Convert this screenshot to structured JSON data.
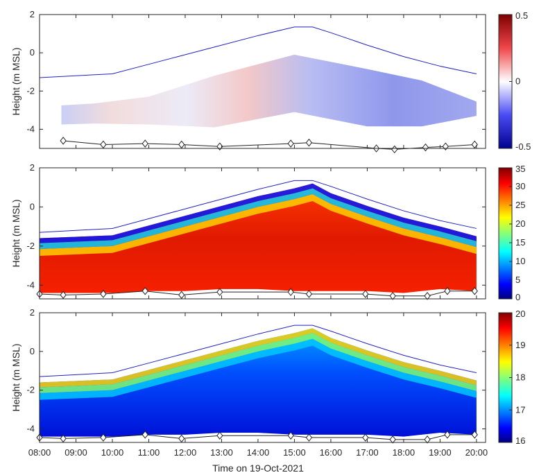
{
  "chart_data": [
    {
      "type": "heatmap",
      "ylabel": "Height (m MSL)",
      "ylim": [
        -5,
        2
      ],
      "xlim": [
        8.0,
        20.25
      ],
      "yticks": [
        -4,
        -2,
        0,
        2
      ],
      "colorbar": {
        "ticks": [
          -0.5,
          0,
          0.5
        ],
        "tick_labels": [
          "-0.5",
          "0",
          "0.5"
        ],
        "range": [
          -0.5,
          0.5
        ],
        "colormap": "blue-white-red"
      },
      "surface_line": {
        "x": [
          8.0,
          10.0,
          11.0,
          12.0,
          13.0,
          14.0,
          15.0,
          15.5,
          16.0,
          17.0,
          18.0,
          19.0,
          20.0
        ],
        "y": [
          -1.3,
          -1.1,
          -0.6,
          -0.1,
          0.4,
          0.9,
          1.35,
          1.35,
          1.05,
          0.4,
          -0.2,
          -0.7,
          -1.1
        ]
      },
      "bed_markers": {
        "x": [
          8.65,
          9.75,
          10.9,
          11.9,
          12.95,
          14.9,
          15.4,
          17.25,
          17.75,
          18.6,
          19.15,
          19.95
        ],
        "y": [
          -4.6,
          -4.8,
          -4.75,
          -4.8,
          -4.9,
          -4.75,
          -4.7,
          -5.0,
          -5.05,
          -4.95,
          -4.9,
          -4.8
        ]
      },
      "data_region": {
        "x": [
          8.6,
          9.5,
          11.0,
          12.8,
          15.0,
          17.0,
          18.5,
          20.0
        ],
        "top": [
          -2.75,
          -2.65,
          -2.3,
          -1.2,
          -0.1,
          -0.85,
          -1.45,
          -2.55
        ],
        "bottom": [
          -3.75,
          -3.7,
          -3.75,
          -3.9,
          -3.1,
          -3.85,
          -3.85,
          -3.3
        ]
      }
    },
    {
      "type": "heatmap",
      "ylabel": "Height (m MSL)",
      "ylim": [
        -4.7,
        2
      ],
      "xlim": [
        8.0,
        20.25
      ],
      "yticks": [
        -4,
        -2,
        0,
        2
      ],
      "colorbar": {
        "ticks": [
          0,
          5,
          10,
          15,
          20,
          25,
          30,
          35
        ],
        "tick_labels": [
          "0",
          "5",
          "10",
          "15",
          "20",
          "25",
          "30",
          "35"
        ],
        "range": [
          0,
          35
        ],
        "colormap": "jet"
      },
      "surface_line": {
        "x": [
          8.0,
          10.0,
          11.0,
          12.0,
          13.0,
          14.0,
          15.0,
          15.5,
          16.0,
          17.0,
          18.0,
          19.0,
          20.0
        ],
        "y": [
          -1.3,
          -1.1,
          -0.6,
          -0.1,
          0.4,
          0.9,
          1.35,
          1.35,
          1.05,
          0.4,
          -0.2,
          -0.7,
          -1.1
        ]
      },
      "bed_markers": {
        "x": [
          8.0,
          8.65,
          9.75,
          10.9,
          11.9,
          12.95,
          14.9,
          15.4,
          16.95,
          17.7,
          18.65,
          19.2,
          19.95
        ],
        "y": [
          -4.45,
          -4.5,
          -4.45,
          -4.3,
          -4.5,
          -4.35,
          -4.35,
          -4.45,
          -4.45,
          -4.55,
          -4.55,
          -4.3,
          -4.3
        ]
      },
      "data_region": {
        "x": [
          8.0,
          10.0,
          11.0,
          12.0,
          13.0,
          14.0,
          15.0,
          15.5,
          16.0,
          17.0,
          18.0,
          19.0,
          20.0
        ],
        "top": [
          -1.6,
          -1.45,
          -0.95,
          -0.45,
          0.05,
          0.55,
          0.95,
          1.2,
          0.7,
          0.05,
          -0.55,
          -1.0,
          -1.5
        ],
        "bottom": [
          -4.4,
          -4.4,
          -4.3,
          -4.3,
          -4.2,
          -4.2,
          -4.3,
          -4.3,
          -4.3,
          -4.3,
          -4.4,
          -4.2,
          -4.3
        ]
      }
    },
    {
      "type": "heatmap",
      "ylabel": "Height (m MSL)",
      "xlabel": "Time on 19-Oct-2021",
      "ylim": [
        -4.7,
        2
      ],
      "xlim": [
        8.0,
        20.25
      ],
      "yticks": [
        -4,
        -2,
        0,
        2
      ],
      "xticks": [
        8,
        9,
        10,
        11,
        12,
        13,
        14,
        15,
        16,
        17,
        18,
        19,
        20
      ],
      "xtick_labels": [
        "08:00",
        "09:00",
        "10:00",
        "11:00",
        "12:00",
        "13:00",
        "14:00",
        "15:00",
        "16:00",
        "17:00",
        "18:00",
        "19:00",
        "20:00"
      ],
      "colorbar": {
        "ticks": [
          16,
          17,
          18,
          19,
          20
        ],
        "tick_labels": [
          "16",
          "17",
          "18",
          "19",
          "20"
        ],
        "range": [
          16,
          20
        ],
        "colormap": "jet"
      },
      "surface_line": {
        "x": [
          8.0,
          10.0,
          11.0,
          12.0,
          13.0,
          14.0,
          15.0,
          15.5,
          16.0,
          17.0,
          18.0,
          19.0,
          20.0
        ],
        "y": [
          -1.3,
          -1.1,
          -0.6,
          -0.1,
          0.4,
          0.9,
          1.35,
          1.35,
          1.05,
          0.4,
          -0.2,
          -0.7,
          -1.1
        ]
      },
      "bed_markers": {
        "x": [
          8.0,
          8.65,
          9.75,
          10.9,
          11.9,
          12.95,
          14.9,
          15.4,
          16.95,
          17.7,
          18.65,
          19.2,
          19.95
        ],
        "y": [
          -4.45,
          -4.5,
          -4.45,
          -4.3,
          -4.5,
          -4.35,
          -4.35,
          -4.45,
          -4.45,
          -4.55,
          -4.55,
          -4.3,
          -4.3
        ]
      },
      "data_region": {
        "x": [
          8.0,
          10.0,
          11.0,
          12.0,
          13.0,
          14.0,
          15.0,
          15.5,
          16.0,
          17.0,
          18.0,
          19.0,
          20.0
        ],
        "top": [
          -1.6,
          -1.45,
          -0.95,
          -0.45,
          0.05,
          0.55,
          0.95,
          1.2,
          0.7,
          0.05,
          -0.55,
          -1.0,
          -1.5
        ],
        "bottom": [
          -4.4,
          -4.4,
          -4.3,
          -4.3,
          -4.2,
          -4.2,
          -4.3,
          -4.3,
          -4.3,
          -4.3,
          -4.4,
          -4.2,
          -4.3
        ]
      }
    }
  ]
}
